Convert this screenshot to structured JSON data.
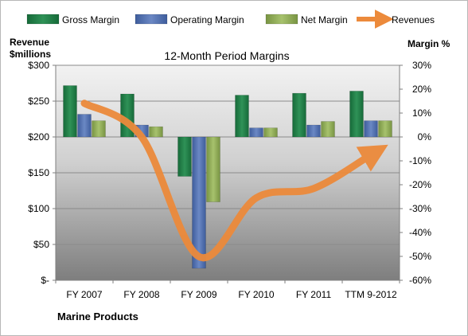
{
  "chart_data": {
    "type": "bar",
    "title": "12-Month Period Margins",
    "company": "Marine Products",
    "categories": [
      "FY 2007",
      "FY 2008",
      "FY 2009",
      "FY 2010",
      "FY 2011",
      "TTM 9-2012"
    ],
    "left_axis": {
      "label_line1": "Revenue",
      "label_line2": "$millions",
      "range": [
        0,
        300
      ],
      "ticks": [
        0,
        50,
        100,
        150,
        200,
        250,
        300
      ],
      "tick_labels": [
        "$-",
        "$50",
        "$100",
        "$150",
        "$200",
        "$250",
        "$300"
      ]
    },
    "right_axis": {
      "label": "Margin %",
      "range": [
        -60,
        30
      ],
      "ticks": [
        -60,
        -50,
        -40,
        -30,
        -20,
        -10,
        0,
        10,
        20,
        30
      ],
      "tick_labels": [
        "-60%",
        "-50%",
        "-40%",
        "-30%",
        "-20%",
        "-10%",
        "0%",
        "10%",
        "20%",
        "30%"
      ]
    },
    "series": [
      {
        "name": "Gross Margin",
        "axis": "right",
        "kind": "bar",
        "color": "#1e7b45",
        "values": [
          21.5,
          18,
          -16.5,
          17.5,
          18.3,
          19.2
        ]
      },
      {
        "name": "Operating Margin",
        "axis": "right",
        "kind": "bar",
        "color": "#4f6fb0",
        "values": [
          9.5,
          5,
          -55,
          3.8,
          5,
          6.8
        ]
      },
      {
        "name": "Net Margin",
        "axis": "right",
        "kind": "bar",
        "color": "#8fab58",
        "values": [
          6.8,
          4.3,
          -27.2,
          3.8,
          6.5,
          6.8
        ]
      },
      {
        "name": "Revenues",
        "axis": "left",
        "kind": "line",
        "color": "#ec8a3b",
        "values": [
          247,
          200,
          33,
          115,
          128,
          175
        ]
      }
    ],
    "legend_position": "top",
    "grid": true
  }
}
